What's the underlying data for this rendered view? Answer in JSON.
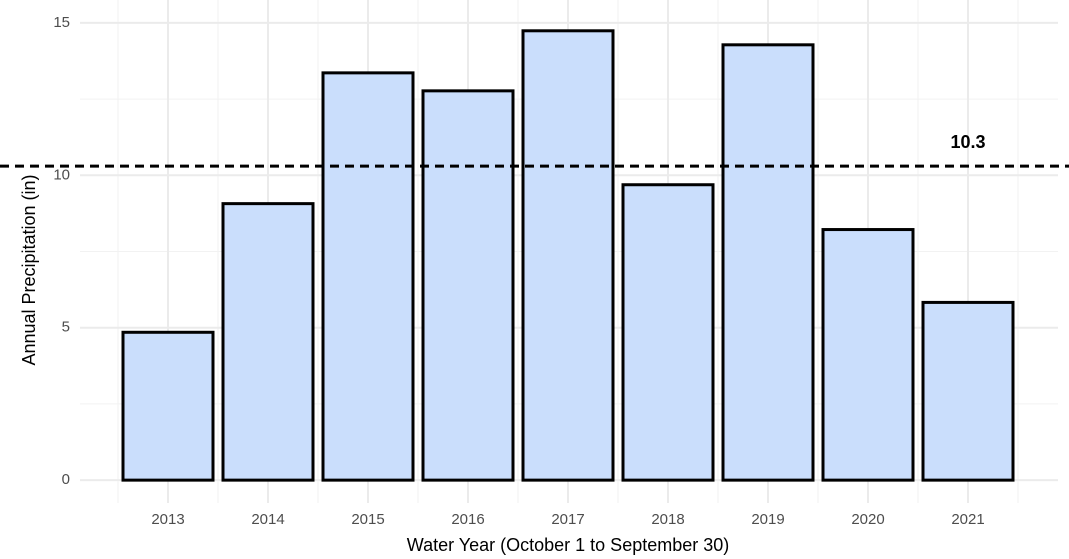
{
  "chart_data": {
    "type": "bar",
    "x_label": "Water Year (October 1 to September 30)",
    "y_label": "Annual Precipitation (in)",
    "categories": [
      "2013",
      "2014",
      "2015",
      "2016",
      "2017",
      "2018",
      "2019",
      "2020",
      "2021"
    ],
    "values": [
      4.85,
      9.07,
      13.36,
      12.77,
      14.74,
      9.69,
      14.28,
      8.22,
      5.83
    ],
    "color": "#cadefc",
    "ylim": [
      -0.75,
      15.75
    ],
    "yticks": [
      0,
      5,
      10,
      15
    ],
    "minor_yticks": [
      2.5,
      7.5,
      12.5
    ],
    "grid": true,
    "hline": 10.3
  }
}
